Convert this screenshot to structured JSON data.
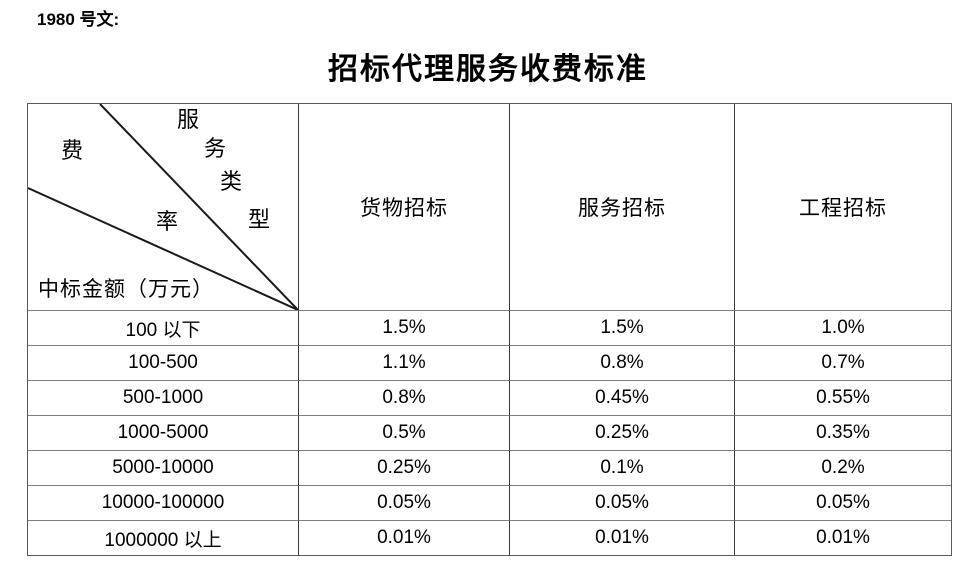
{
  "doc": {
    "ref": "1980 号文:",
    "title": "招标代理服务收费标准"
  },
  "table": {
    "corner": {
      "type_label": "服务类型",
      "type_chars": [
        "服",
        "务",
        "类",
        "型"
      ],
      "rate_label": "费率",
      "rate_chars": [
        "费",
        "率"
      ],
      "amount_label": "中标金额（万元）"
    },
    "columns": [
      "货物招标",
      "服务招标",
      "工程招标"
    ],
    "rows": [
      {
        "range": "100 以下",
        "values": [
          "1.5%",
          "1.5%",
          "1.0%"
        ]
      },
      {
        "range": "100-500",
        "values": [
          "1.1%",
          "0.8%",
          "0.7%"
        ]
      },
      {
        "range": "500-1000",
        "values": [
          "0.8%",
          "0.45%",
          "0.55%"
        ]
      },
      {
        "range": "1000-5000",
        "values": [
          "0.5%",
          "0.25%",
          "0.35%"
        ]
      },
      {
        "range": "5000-10000",
        "values": [
          "0.25%",
          "0.1%",
          "0.2%"
        ]
      },
      {
        "range": "10000-100000",
        "values": [
          "0.05%",
          "0.05%",
          "0.05%"
        ]
      },
      {
        "range": "1000000 以上",
        "values": [
          "0.01%",
          "0.01%",
          "0.01%"
        ]
      }
    ]
  },
  "colors": {
    "text": "#000000",
    "outer_border": "#595959",
    "vertical_line": "#3a3a3a",
    "horizontal_line": "#7f7f7f",
    "diagonal_line": "#1a1a1a",
    "background": "#ffffff"
  }
}
